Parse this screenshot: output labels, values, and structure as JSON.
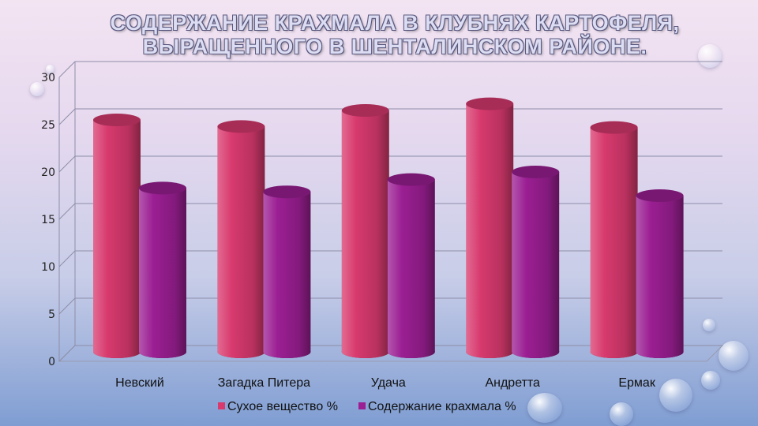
{
  "slide": {
    "title_line1": "СОДЕРЖАНИЕ  КРАХМАЛА В КЛУБНЯХ КАРТОФЕЛЯ,",
    "title_line2": "ВЫРАЩЕННОГО В  ШЕНТАЛИНСКОМ РАЙОНЕ."
  },
  "chart_data": {
    "type": "bar",
    "title": "СОДЕРЖАНИЕ  КРАХМАЛА В КЛУБНЯХ КАРТОФЕЛЯ, ВЫРАЩЕННОГО В  ШЕНТАЛИНСКОМ РАЙОНЕ.",
    "categories": [
      "Невский",
      "Загадка Питера",
      "Удача",
      "Андретта",
      "Ермак"
    ],
    "series": [
      {
        "name": "Сухое вещество %",
        "values": [
          25.5,
          24.8,
          26.5,
          27.2,
          24.7
        ],
        "color": "#d83a6e"
      },
      {
        "name": "Содержание крахмала %",
        "values": [
          18.3,
          17.9,
          19.2,
          20.0,
          17.5
        ],
        "color": "#9b1f93"
      }
    ],
    "yticks": [
      "0",
      "5",
      "10",
      "15",
      "20",
      "25",
      "30"
    ],
    "ylim": [
      0,
      30
    ],
    "grid": true,
    "legend": "bottom",
    "style": "3d-cylinder"
  }
}
